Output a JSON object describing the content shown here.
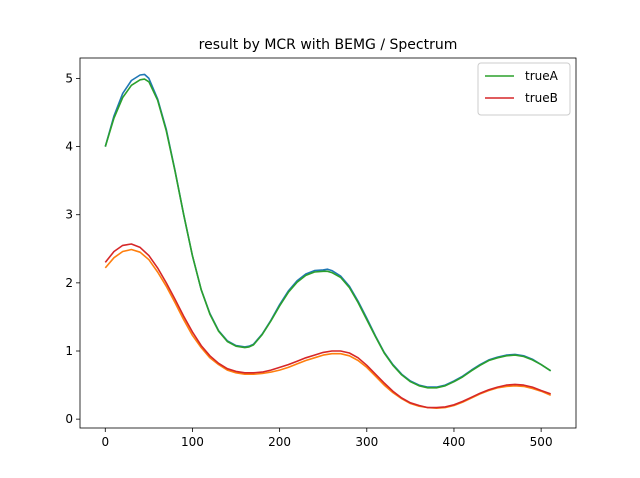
{
  "chart_data": {
    "type": "line",
    "title": "result by MCR with BEMG / Spectrum",
    "xlabel": "",
    "ylabel": "",
    "xlim": [
      -29,
      540
    ],
    "ylim": [
      -0.13,
      5.3
    ],
    "xticks": [
      0,
      100,
      200,
      300,
      400,
      500
    ],
    "yticks": [
      0,
      1,
      2,
      3,
      4,
      5
    ],
    "grid": false,
    "legend_position": "top-right",
    "series": [
      {
        "name": "",
        "color": "#1f77b4",
        "legend": false,
        "x": [
          0,
          10,
          20,
          30,
          40,
          45,
          50,
          60,
          70,
          80,
          90,
          100,
          110,
          120,
          130,
          140,
          150,
          160,
          165,
          170,
          180,
          190,
          200,
          210,
          220,
          230,
          240,
          250,
          255,
          260,
          270,
          280,
          290,
          300,
          310,
          320,
          330,
          340,
          350,
          360,
          370,
          380,
          390,
          400,
          410,
          420,
          430,
          440,
          450,
          460,
          470,
          480,
          490,
          500,
          511
        ],
        "y": [
          4.0,
          4.45,
          4.78,
          4.97,
          5.05,
          5.06,
          5.0,
          4.7,
          4.25,
          3.65,
          3.0,
          2.4,
          1.9,
          1.55,
          1.3,
          1.15,
          1.08,
          1.06,
          1.07,
          1.1,
          1.25,
          1.45,
          1.68,
          1.88,
          2.03,
          2.13,
          2.18,
          2.19,
          2.2,
          2.18,
          2.1,
          1.95,
          1.73,
          1.48,
          1.22,
          0.98,
          0.8,
          0.66,
          0.56,
          0.5,
          0.47,
          0.47,
          0.5,
          0.56,
          0.63,
          0.72,
          0.8,
          0.87,
          0.91,
          0.94,
          0.95,
          0.93,
          0.88,
          0.8,
          0.71
        ]
      },
      {
        "name": "",
        "color": "#ff7f0e",
        "legend": false,
        "x": [
          0,
          10,
          20,
          30,
          40,
          50,
          60,
          70,
          80,
          90,
          100,
          110,
          120,
          130,
          140,
          150,
          160,
          170,
          180,
          190,
          200,
          210,
          220,
          230,
          240,
          250,
          260,
          270,
          280,
          290,
          300,
          310,
          320,
          330,
          340,
          350,
          360,
          370,
          380,
          390,
          400,
          410,
          420,
          430,
          440,
          450,
          460,
          470,
          480,
          490,
          500,
          511
        ],
        "y": [
          2.22,
          2.37,
          2.46,
          2.49,
          2.45,
          2.34,
          2.16,
          1.95,
          1.71,
          1.46,
          1.23,
          1.05,
          0.9,
          0.8,
          0.72,
          0.68,
          0.66,
          0.66,
          0.67,
          0.69,
          0.72,
          0.76,
          0.81,
          0.86,
          0.9,
          0.94,
          0.96,
          0.96,
          0.93,
          0.86,
          0.76,
          0.63,
          0.5,
          0.39,
          0.3,
          0.23,
          0.19,
          0.17,
          0.16,
          0.17,
          0.2,
          0.25,
          0.31,
          0.37,
          0.42,
          0.46,
          0.48,
          0.49,
          0.48,
          0.45,
          0.41,
          0.35
        ]
      },
      {
        "name": "trueA",
        "color": "#2ca02c",
        "legend": true,
        "x": [
          0,
          10,
          20,
          30,
          40,
          45,
          50,
          60,
          70,
          80,
          90,
          100,
          110,
          120,
          130,
          140,
          150,
          160,
          165,
          170,
          180,
          190,
          200,
          210,
          220,
          230,
          240,
          250,
          255,
          260,
          270,
          280,
          290,
          300,
          310,
          320,
          330,
          340,
          350,
          360,
          370,
          380,
          390,
          400,
          410,
          420,
          430,
          440,
          450,
          460,
          470,
          480,
          490,
          500,
          511
        ],
        "y": [
          4.0,
          4.42,
          4.72,
          4.9,
          4.98,
          4.99,
          4.95,
          4.68,
          4.23,
          3.64,
          3.0,
          2.4,
          1.9,
          1.54,
          1.29,
          1.14,
          1.07,
          1.05,
          1.06,
          1.09,
          1.24,
          1.44,
          1.66,
          1.86,
          2.01,
          2.11,
          2.16,
          2.17,
          2.17,
          2.15,
          2.08,
          1.93,
          1.71,
          1.46,
          1.21,
          0.97,
          0.79,
          0.65,
          0.55,
          0.49,
          0.46,
          0.46,
          0.49,
          0.55,
          0.62,
          0.71,
          0.79,
          0.86,
          0.9,
          0.93,
          0.94,
          0.92,
          0.87,
          0.8,
          0.71
        ]
      },
      {
        "name": "trueB",
        "color": "#d62728",
        "legend": true,
        "x": [
          0,
          10,
          20,
          30,
          40,
          50,
          60,
          70,
          80,
          90,
          100,
          110,
          120,
          130,
          140,
          150,
          160,
          170,
          180,
          190,
          200,
          210,
          220,
          230,
          240,
          250,
          260,
          270,
          280,
          290,
          300,
          310,
          320,
          330,
          340,
          350,
          360,
          370,
          380,
          390,
          400,
          410,
          420,
          430,
          440,
          450,
          460,
          470,
          480,
          490,
          500,
          511
        ],
        "y": [
          2.3,
          2.46,
          2.55,
          2.57,
          2.52,
          2.4,
          2.22,
          2.0,
          1.76,
          1.51,
          1.28,
          1.08,
          0.93,
          0.82,
          0.74,
          0.7,
          0.68,
          0.68,
          0.69,
          0.72,
          0.76,
          0.8,
          0.85,
          0.9,
          0.94,
          0.98,
          1.0,
          1.0,
          0.97,
          0.9,
          0.79,
          0.66,
          0.53,
          0.41,
          0.31,
          0.24,
          0.2,
          0.17,
          0.17,
          0.18,
          0.21,
          0.26,
          0.32,
          0.38,
          0.43,
          0.47,
          0.5,
          0.51,
          0.5,
          0.47,
          0.42,
          0.37
        ]
      }
    ]
  }
}
